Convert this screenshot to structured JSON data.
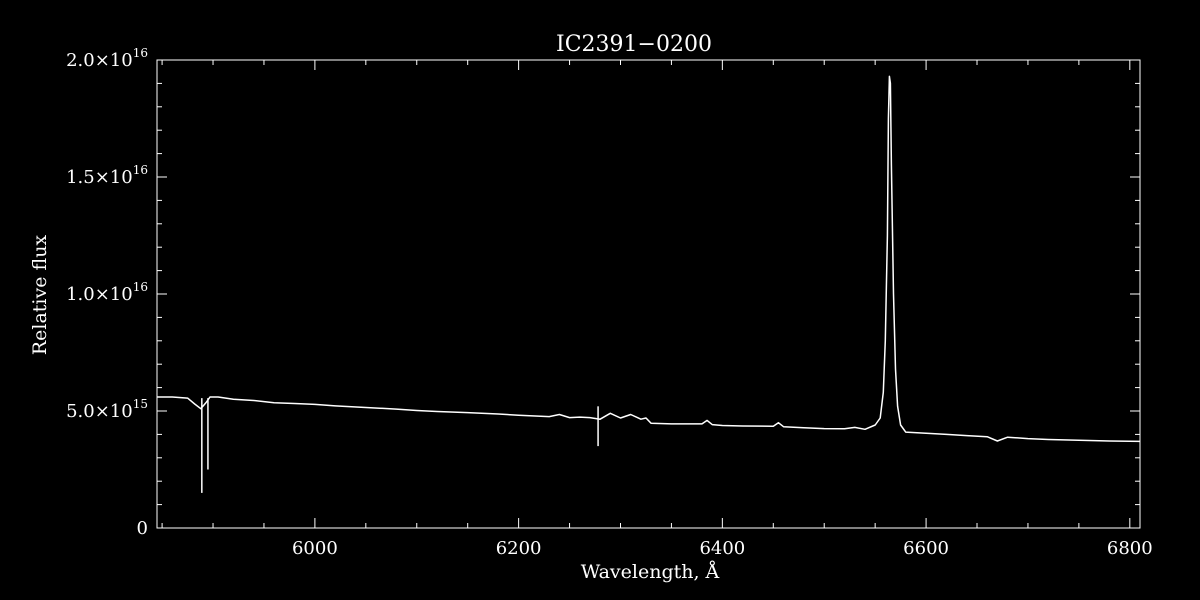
{
  "chart_data": {
    "type": "line",
    "title": "IC2391−0200",
    "xlabel": "Wavelength, Å",
    "ylabel": "Relative flux",
    "xlim": [
      5845,
      6810
    ],
    "ylim": [
      0,
      2e+16
    ],
    "grid": false,
    "legend": "none",
    "colors": {
      "background": "#000000",
      "foreground": "#ffffff"
    },
    "x_ticks": [
      {
        "value": 6000,
        "label": "6000"
      },
      {
        "value": 6200,
        "label": "6200"
      },
      {
        "value": 6400,
        "label": "6400"
      },
      {
        "value": 6600,
        "label": "6600"
      },
      {
        "value": 6800,
        "label": "6800"
      }
    ],
    "y_ticks": [
      {
        "value": 0,
        "mantissa": "0",
        "exponent": ""
      },
      {
        "value": 5000000000000000.0,
        "mantissa": "5.0×10",
        "exponent": "15"
      },
      {
        "value": 1e+16,
        "mantissa": "1.0×10",
        "exponent": "16"
      },
      {
        "value": 1.5e+16,
        "mantissa": "1.5×10",
        "exponent": "16"
      },
      {
        "value": 2e+16,
        "mantissa": "2.0×10",
        "exponent": "16"
      }
    ],
    "series": [
      {
        "x": [
          5845,
          5860,
          5875,
          5882,
          5888,
          5893,
          5897,
          5905,
          5920,
          5940,
          5960,
          5980,
          6000,
          6020,
          6050,
          6080,
          6100,
          6120,
          6150,
          6180,
          6200,
          6230,
          6240,
          6250,
          6260,
          6270,
          6280,
          6290,
          6300,
          6310,
          6320,
          6325,
          6330,
          6350,
          6380,
          6385,
          6390,
          6400,
          6420,
          6450,
          6455,
          6460,
          6480,
          6500,
          6520,
          6530,
          6540,
          6550,
          6555,
          6558,
          6560,
          6562,
          6563,
          6564,
          6565,
          6566,
          6568,
          6570,
          6572,
          6575,
          6580,
          6600,
          6620,
          6640,
          6660,
          6670,
          6680,
          6690,
          6700,
          6720,
          6750,
          6780,
          6810
        ],
        "y": [
          5600000000000000.0,
          5600000000000000.0,
          5550000000000000.0,
          5300000000000000.0,
          5100000000000000.0,
          5350000000000000.0,
          5600000000000000.0,
          5600000000000000.0,
          5500000000000000.0,
          5450000000000000.0,
          5350000000000000.0,
          5320000000000000.0,
          5280000000000000.0,
          5220000000000000.0,
          5150000000000000.0,
          5080000000000000.0,
          5020000000000000.0,
          4980000000000000.0,
          4930000000000000.0,
          4870000000000000.0,
          4820000000000000.0,
          4760000000000000.0,
          4850000000000000.0,
          4720000000000000.0,
          4740000000000000.0,
          4720000000000000.0,
          4650000000000000.0,
          4900000000000000.0,
          4700000000000000.0,
          4850000000000000.0,
          4650000000000000.0,
          4700000000000000.0,
          4480000000000000.0,
          4450000000000000.0,
          4450000000000000.0,
          4600000000000000.0,
          4420000000000000.0,
          4380000000000000.0,
          4360000000000000.0,
          4350000000000000.0,
          4500000000000000.0,
          4330000000000000.0,
          4280000000000000.0,
          4250000000000000.0,
          4240000000000000.0,
          4300000000000000.0,
          4220000000000000.0,
          4400000000000000.0,
          4700000000000000.0,
          5800000000000000.0,
          8000000000000000.0,
          1.25e+16,
          1.75e+16,
          1.93e+16,
          1.9e+16,
          1.55e+16,
          1e+16,
          6800000000000000.0,
          5200000000000000.0,
          4400000000000000.0,
          4100000000000000.0,
          4050000000000000.0,
          4000000000000000.0,
          3950000000000000.0,
          3900000000000000.0,
          3720000000000000.0,
          3880000000000000.0,
          3850000000000000.0,
          3820000000000000.0,
          3780000000000000.0,
          3750000000000000.0,
          3720000000000000.0,
          3700000000000000.0
        ]
      }
    ],
    "spikes": [
      {
        "x": 5889,
        "y_top": 5550000000000000.0,
        "y_bottom": 1500000000000000.0
      },
      {
        "x": 5895,
        "y_top": 5550000000000000.0,
        "y_bottom": 2500000000000000.0
      },
      {
        "x": 6278,
        "y_top": 5200000000000000.0,
        "y_bottom": 3500000000000000.0
      }
    ]
  }
}
